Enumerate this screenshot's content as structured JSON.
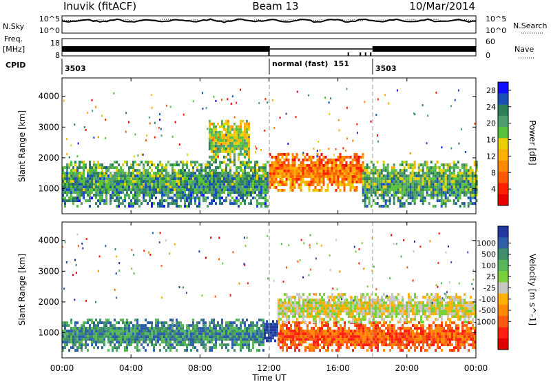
{
  "header": {
    "station": "Inuvik (fitACF)",
    "beam": "Beam 13",
    "date": "10/Mar/2014"
  },
  "panels": {
    "nsky_label": "N.Sky",
    "nsky_ticks": [
      "10^5",
      "10^0"
    ],
    "nsearch_label": "N.Search",
    "freq_label": "Freq.",
    "freq_unit": "[MHz]",
    "freq_ticks": [
      "18",
      "8"
    ],
    "nave_label": "Nave",
    "nave_ticks": [
      "60",
      "0"
    ],
    "cpid_label": "CPID",
    "cpid_segments": [
      {
        "label": "3503",
        "start": "00:00",
        "end": "12:00"
      },
      {
        "label": "normal (fast)  151",
        "start": "12:00",
        "end": "18:00"
      },
      {
        "label": "3503",
        "start": "18:00",
        "end": "24:00"
      }
    ]
  },
  "chart_data": [
    {
      "type": "heatmap",
      "title": "",
      "xlabel": "Time UT",
      "ylabel": "Slant Range [km]",
      "x_ticks": [
        "00:00",
        "04:00",
        "08:00",
        "12:00",
        "16:00",
        "20:00",
        "00:00"
      ],
      "xlim_hours": [
        0,
        24
      ],
      "y_ticks": [
        "1000",
        "2000",
        "3000",
        "4000"
      ],
      "ylim": [
        180,
        4600
      ],
      "colorbar": {
        "label": "Power [dB]",
        "ticks": [
          "4",
          "8",
          "12",
          "16",
          "20",
          "24",
          "28"
        ],
        "range": [
          0,
          30
        ],
        "colors": [
          "#1010ff",
          "#1a4fb8",
          "#2d7f5a",
          "#4f9f6e",
          "#58c23a",
          "#e8d000",
          "#ffb000",
          "#ff8a00",
          "#ff5a00",
          "#ff2000",
          "#e80000"
        ]
      },
      "bands": [
        {
          "start_h": 0.0,
          "end_h": 11.9,
          "range_low": 380,
          "range_high": 1900,
          "level": 24
        },
        {
          "start_h": 12.0,
          "end_h": 17.4,
          "range_low": 900,
          "range_high": 2100,
          "level": 10
        },
        {
          "start_h": 17.4,
          "end_h": 24.0,
          "range_low": 380,
          "range_high": 1850,
          "level": 23
        },
        {
          "start_h": 8.5,
          "end_h": 10.8,
          "range_low": 1800,
          "range_high": 3200,
          "level": 19
        }
      ]
    },
    {
      "type": "heatmap",
      "title": "",
      "xlabel": "Time UT",
      "ylabel": "Slant Range [km]",
      "x_ticks": [
        "00:00",
        "04:00",
        "08:00",
        "12:00",
        "16:00",
        "20:00",
        "00:00"
      ],
      "xlim_hours": [
        0,
        24
      ],
      "y_ticks": [
        "1000",
        "2000",
        "3000",
        "4000"
      ],
      "ylim": [
        180,
        4600
      ],
      "colorbar": {
        "label": "Velocity [m s^-1]",
        "ticks": [
          "1000",
          "500",
          "100",
          "25",
          "-25",
          "-100",
          "-500",
          "-1000"
        ],
        "colors": [
          "#2038a0",
          "#2e5fa8",
          "#3f8f6a",
          "#56b85a",
          "#7ad03a",
          "#c8c8c0",
          "#ffb000",
          "#ff8a00",
          "#ff5a10",
          "#ff2010",
          "#e00000"
        ]
      },
      "bands": [
        {
          "start_h": 0.0,
          "end_h": 11.7,
          "range_low": 380,
          "range_high": 1400,
          "velocity_class": "positive"
        },
        {
          "start_h": 11.7,
          "end_h": 12.5,
          "range_low": 600,
          "range_high": 1400,
          "velocity_class": "strong positive"
        },
        {
          "start_h": 12.5,
          "end_h": 24.0,
          "range_low": 380,
          "range_high": 1300,
          "velocity_class": "negative"
        },
        {
          "start_h": 12.5,
          "end_h": 24.0,
          "range_low": 1300,
          "range_high": 2200,
          "velocity_class": "near zero"
        }
      ]
    }
  ]
}
